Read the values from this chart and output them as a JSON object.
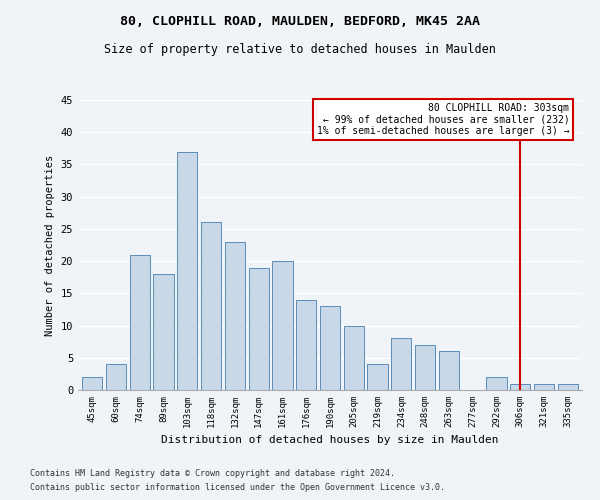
{
  "title1": "80, CLOPHILL ROAD, MAULDEN, BEDFORD, MK45 2AA",
  "title2": "Size of property relative to detached houses in Maulden",
  "xlabel": "Distribution of detached houses by size in Maulden",
  "ylabel": "Number of detached properties",
  "categories": [
    "45sqm",
    "60sqm",
    "74sqm",
    "89sqm",
    "103sqm",
    "118sqm",
    "132sqm",
    "147sqm",
    "161sqm",
    "176sqm",
    "190sqm",
    "205sqm",
    "219sqm",
    "234sqm",
    "248sqm",
    "263sqm",
    "277sqm",
    "292sqm",
    "306sqm",
    "321sqm",
    "335sqm"
  ],
  "values": [
    2,
    4,
    21,
    18,
    37,
    26,
    23,
    19,
    20,
    14,
    13,
    10,
    4,
    8,
    7,
    6,
    0,
    2,
    1,
    1,
    1
  ],
  "bar_color": "#c8d8e8",
  "bar_edge_color": "#5b8db8",
  "highlight_line_index": 18,
  "highlight_color": "#cc0000",
  "annotation_text": "80 CLOPHILL ROAD: 303sqm\n← 99% of detached houses are smaller (232)\n1% of semi-detached houses are larger (3) →",
  "ylim": [
    0,
    45
  ],
  "yticks": [
    0,
    5,
    10,
    15,
    20,
    25,
    30,
    35,
    40,
    45
  ],
  "footer1": "Contains HM Land Registry data © Crown copyright and database right 2024.",
  "footer2": "Contains public sector information licensed under the Open Government Licence v3.0.",
  "bg_color": "#f0f4f8",
  "grid_color": "#ffffff",
  "font_family": "DejaVu Sans Mono"
}
